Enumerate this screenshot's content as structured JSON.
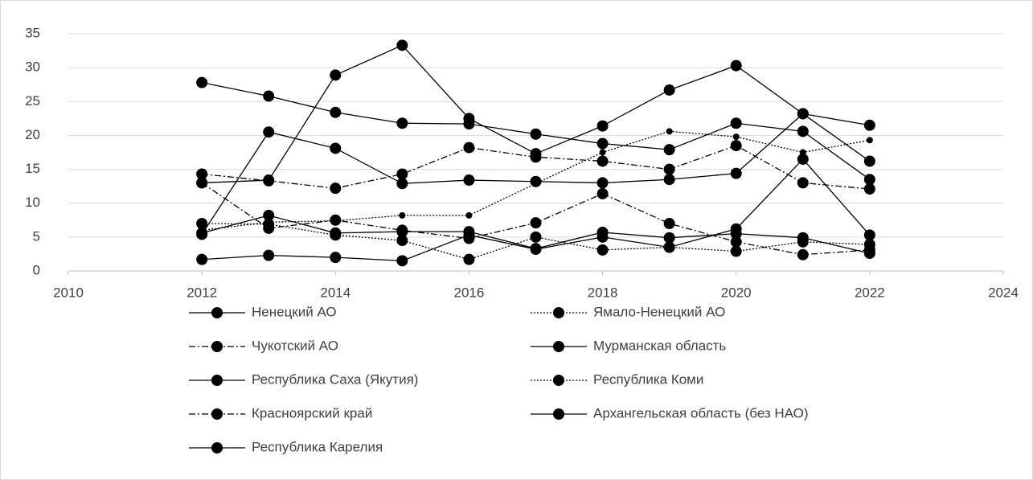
{
  "chart_data": {
    "type": "line",
    "x": [
      2012,
      2013,
      2014,
      2015,
      2016,
      2017,
      2018,
      2019,
      2020,
      2021,
      2022
    ],
    "xlim": [
      2010,
      2024
    ],
    "xticks": [
      2010,
      2012,
      2014,
      2016,
      2018,
      2020,
      2022,
      2024
    ],
    "ylim": [
      0,
      35
    ],
    "yticks": [
      0,
      5,
      10,
      15,
      20,
      25,
      30,
      35
    ],
    "grid": true,
    "legend": "bottom",
    "series": [
      {
        "name": "Ненецкий АО",
        "color": "#000000",
        "dash": "solid",
        "values": [
          13.0,
          13.4,
          28.9,
          33.3,
          22.5,
          17.3,
          21.4,
          26.7,
          30.3,
          23.2,
          16.2
        ]
      },
      {
        "name": "Ямало-Ненецкий АО",
        "color": "#000000",
        "dash": "dotted",
        "values": [
          7.0,
          6.9,
          5.3,
          4.5,
          1.7,
          5.0,
          3.1,
          3.5,
          2.9,
          4.3,
          3.9
        ]
      },
      {
        "name": "Чукотский АО",
        "color": "#000000",
        "dash": "dashdot",
        "values": [
          13.0,
          6.3,
          7.5,
          6.0,
          4.8,
          7.1,
          11.4,
          7.0,
          4.3,
          2.4,
          3.1
        ]
      },
      {
        "name": "Мурманская область",
        "color": "#000000",
        "dash": "solid",
        "values": [
          5.6,
          8.2,
          5.6,
          5.8,
          5.8,
          3.3,
          5.7,
          4.9,
          5.5,
          4.9,
          2.6
        ]
      },
      {
        "name": "Республика Саха (Якутия)",
        "color": "#000000",
        "dash": "solid",
        "values": [
          1.7,
          2.3,
          2.0,
          1.5,
          5.3,
          3.2,
          5.0,
          3.5,
          6.2,
          16.5,
          5.3
        ]
      },
      {
        "name": "Республика Коми",
        "color": "#000000",
        "dash": "dotted",
        "values": [
          6.0,
          7.2,
          7.4,
          8.2,
          8.2,
          12.9,
          17.5,
          20.6,
          19.8,
          17.5,
          19.3
        ]
      },
      {
        "name": "Красноярский край",
        "color": "#000000",
        "dash": "dashdot",
        "values": [
          14.3,
          13.3,
          12.2,
          14.3,
          18.2,
          16.8,
          16.2,
          15.0,
          18.5,
          13.0,
          12.1
        ]
      },
      {
        "name": "Архангельская область (без НАО)",
        "color": "#000000",
        "dash": "solid",
        "values": [
          5.4,
          20.5,
          18.1,
          12.9,
          13.4,
          13.2,
          13.0,
          13.5,
          14.4,
          23.2,
          21.5
        ]
      },
      {
        "name": "Республика Карелия",
        "color": "#000000",
        "dash": "solid",
        "values": [
          27.8,
          25.8,
          23.4,
          21.8,
          21.7,
          20.2,
          18.8,
          17.9,
          21.8,
          20.6,
          13.5
        ]
      }
    ]
  }
}
